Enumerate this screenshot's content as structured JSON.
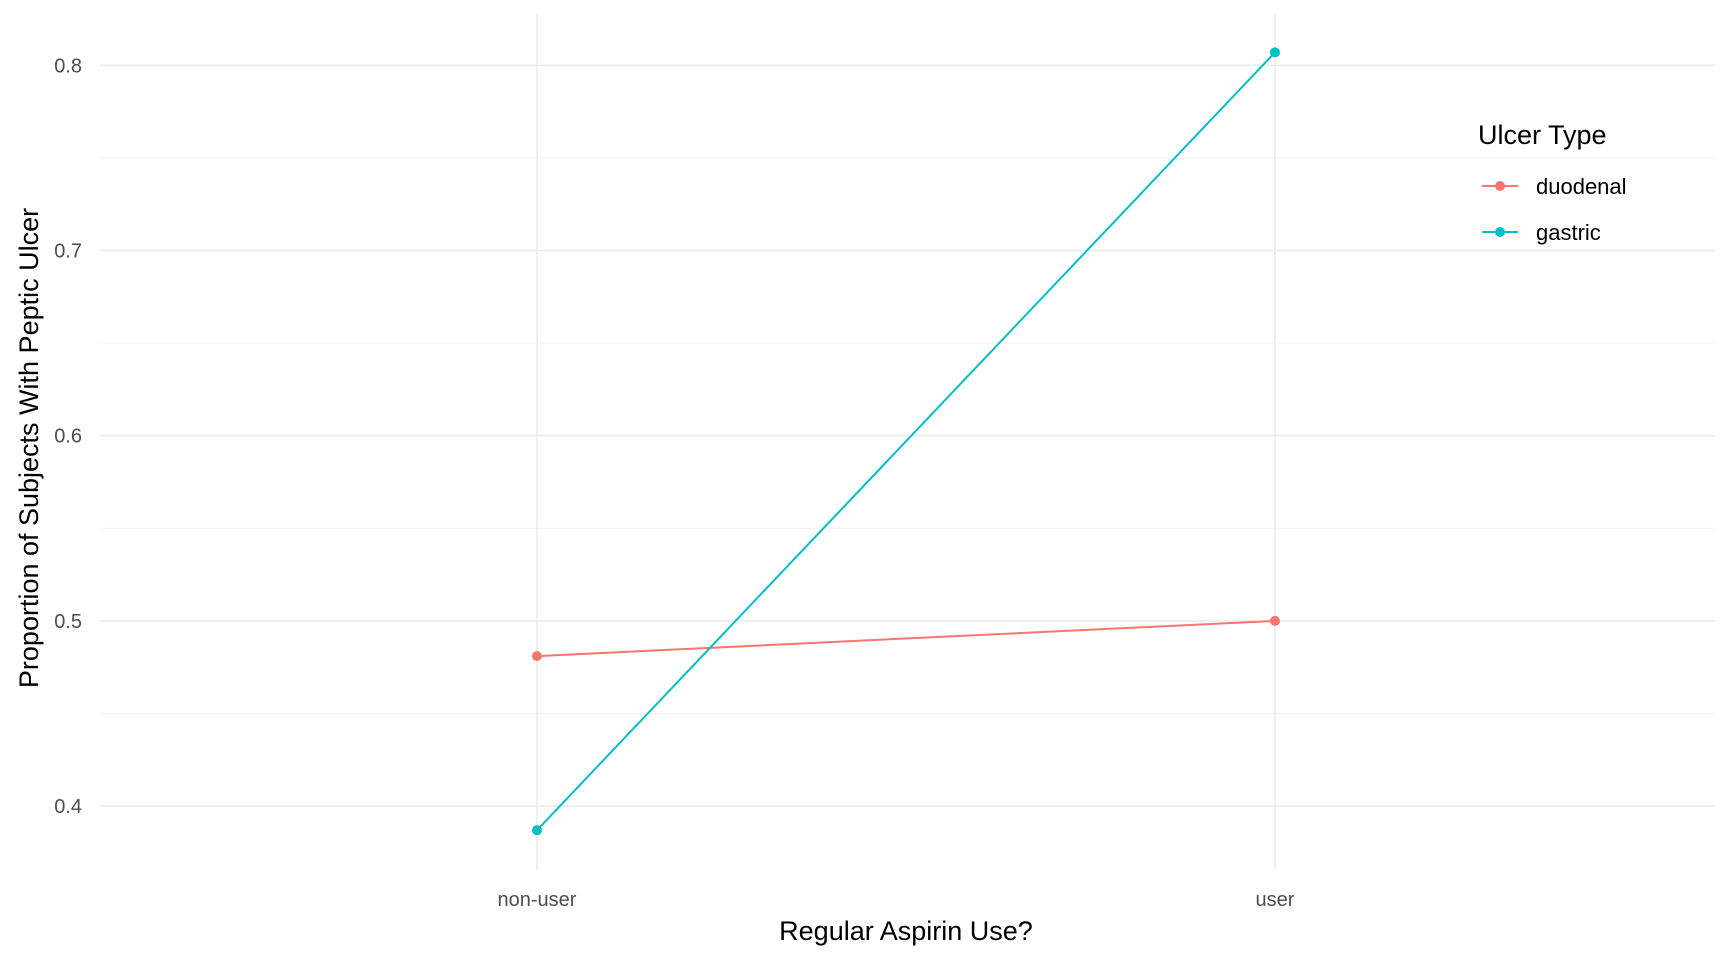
{
  "chart_data": {
    "type": "line",
    "title": "",
    "xlabel": "Regular Aspirin Use?",
    "ylabel": "Proportion of Subjects With Peptic Ulcer",
    "categories": [
      "non-user",
      "user"
    ],
    "ylim": [
      0.3655,
      0.8277
    ],
    "yticks": [
      0.4,
      0.5,
      0.6,
      0.7,
      0.8
    ],
    "ytick_labels": [
      "0.4",
      "0.5",
      "0.6",
      "0.7",
      "0.8"
    ],
    "grid": true,
    "legend": {
      "title": "Ulcer Type",
      "placement": "right"
    },
    "series": [
      {
        "name": "duodenal",
        "color": "#F8766D",
        "values": [
          0.481,
          0.5
        ]
      },
      {
        "name": "gastric",
        "color": "#00BFC4",
        "values": [
          0.387,
          0.807
        ]
      }
    ]
  }
}
